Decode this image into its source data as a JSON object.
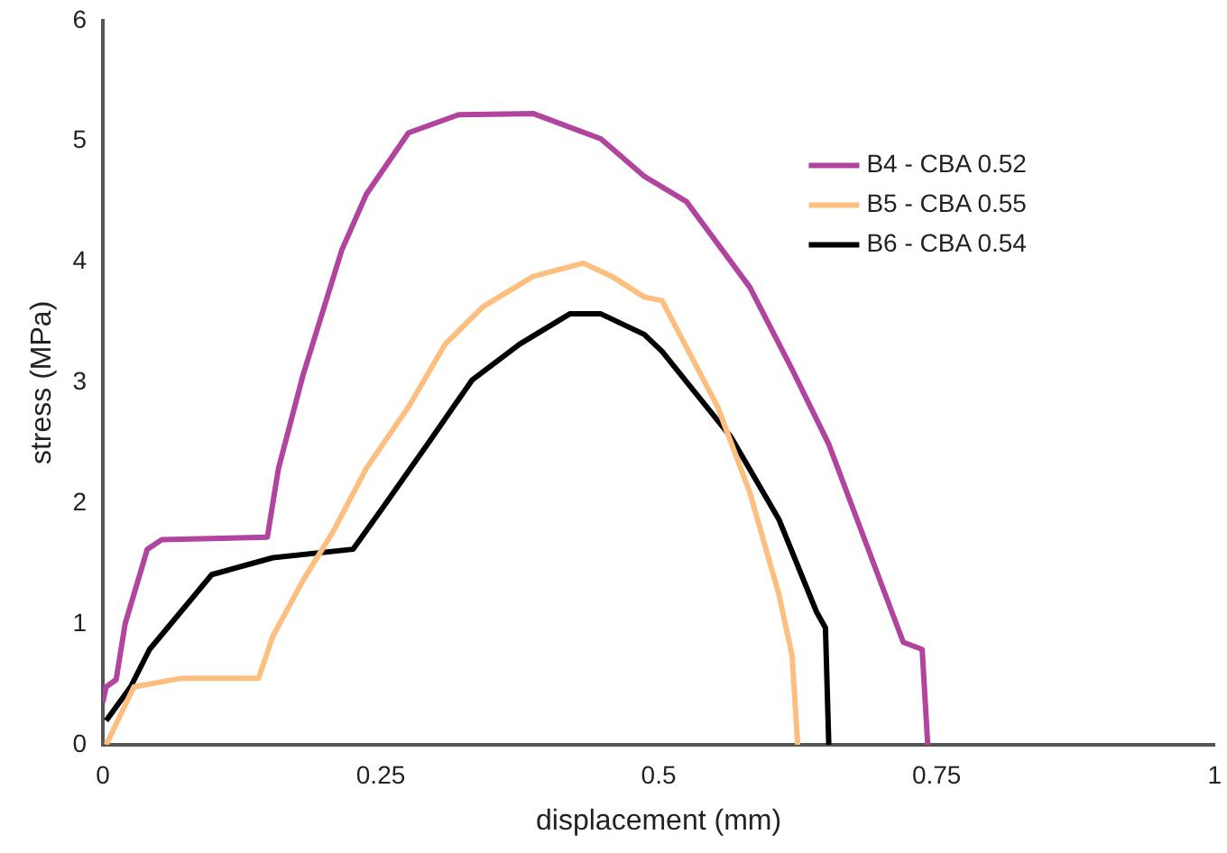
{
  "chart_data": {
    "type": "line",
    "xlabel": "displacement (mm)",
    "ylabel": "stress (MPa)",
    "xlim": [
      0,
      1
    ],
    "ylim": [
      0,
      6
    ],
    "xticks": [
      0,
      0.25,
      0.5,
      0.75,
      1
    ],
    "yticks": [
      0,
      1,
      2,
      3,
      4,
      5,
      6
    ],
    "grid": false,
    "legend": "top right",
    "marker": "none",
    "line_style": "solid",
    "series": [
      {
        "name": "B4 - CBA 0.52",
        "color": "#b0449e",
        "x": [
          0,
          0.003,
          0.012,
          0.02,
          0.04,
          0.053,
          0.148,
          0.158,
          0.18,
          0.215,
          0.237,
          0.275,
          0.32,
          0.387,
          0.448,
          0.487,
          0.525,
          0.582,
          0.62,
          0.653,
          0.682,
          0.72,
          0.737,
          0.742
        ],
        "values": [
          0.35,
          0.48,
          0.54,
          1.0,
          1.62,
          1.7,
          1.72,
          2.29,
          3.06,
          4.1,
          4.56,
          5.07,
          5.22,
          5.23,
          5.02,
          4.71,
          4.5,
          3.79,
          3.11,
          2.49,
          1.78,
          0.85,
          0.79,
          0
        ]
      },
      {
        "name": "B5 - CBA 0.55",
        "color": "#fdbf80",
        "x": [
          0.003,
          0.015,
          0.028,
          0.07,
          0.14,
          0.153,
          0.18,
          0.208,
          0.237,
          0.275,
          0.308,
          0.342,
          0.387,
          0.432,
          0.458,
          0.487,
          0.503,
          0.553,
          0.582,
          0.608,
          0.62,
          0.625
        ],
        "values": [
          0,
          0.23,
          0.48,
          0.55,
          0.55,
          0.9,
          1.36,
          1.78,
          2.29,
          2.8,
          3.32,
          3.63,
          3.88,
          3.99,
          3.88,
          3.71,
          3.68,
          2.8,
          2.09,
          1.25,
          0.74,
          0
        ]
      },
      {
        "name": "B6 - CBA 0.54",
        "color": "#000000",
        "x": [
          0.003,
          0.025,
          0.042,
          0.07,
          0.098,
          0.153,
          0.225,
          0.253,
          0.292,
          0.332,
          0.375,
          0.42,
          0.448,
          0.487,
          0.503,
          0.565,
          0.608,
          0.642,
          0.65,
          0.653
        ],
        "values": [
          0.2,
          0.48,
          0.79,
          1.1,
          1.41,
          1.55,
          1.62,
          1.98,
          2.49,
          3.02,
          3.32,
          3.57,
          3.57,
          3.4,
          3.26,
          2.55,
          1.87,
          1.1,
          0.97,
          0
        ]
      }
    ]
  }
}
